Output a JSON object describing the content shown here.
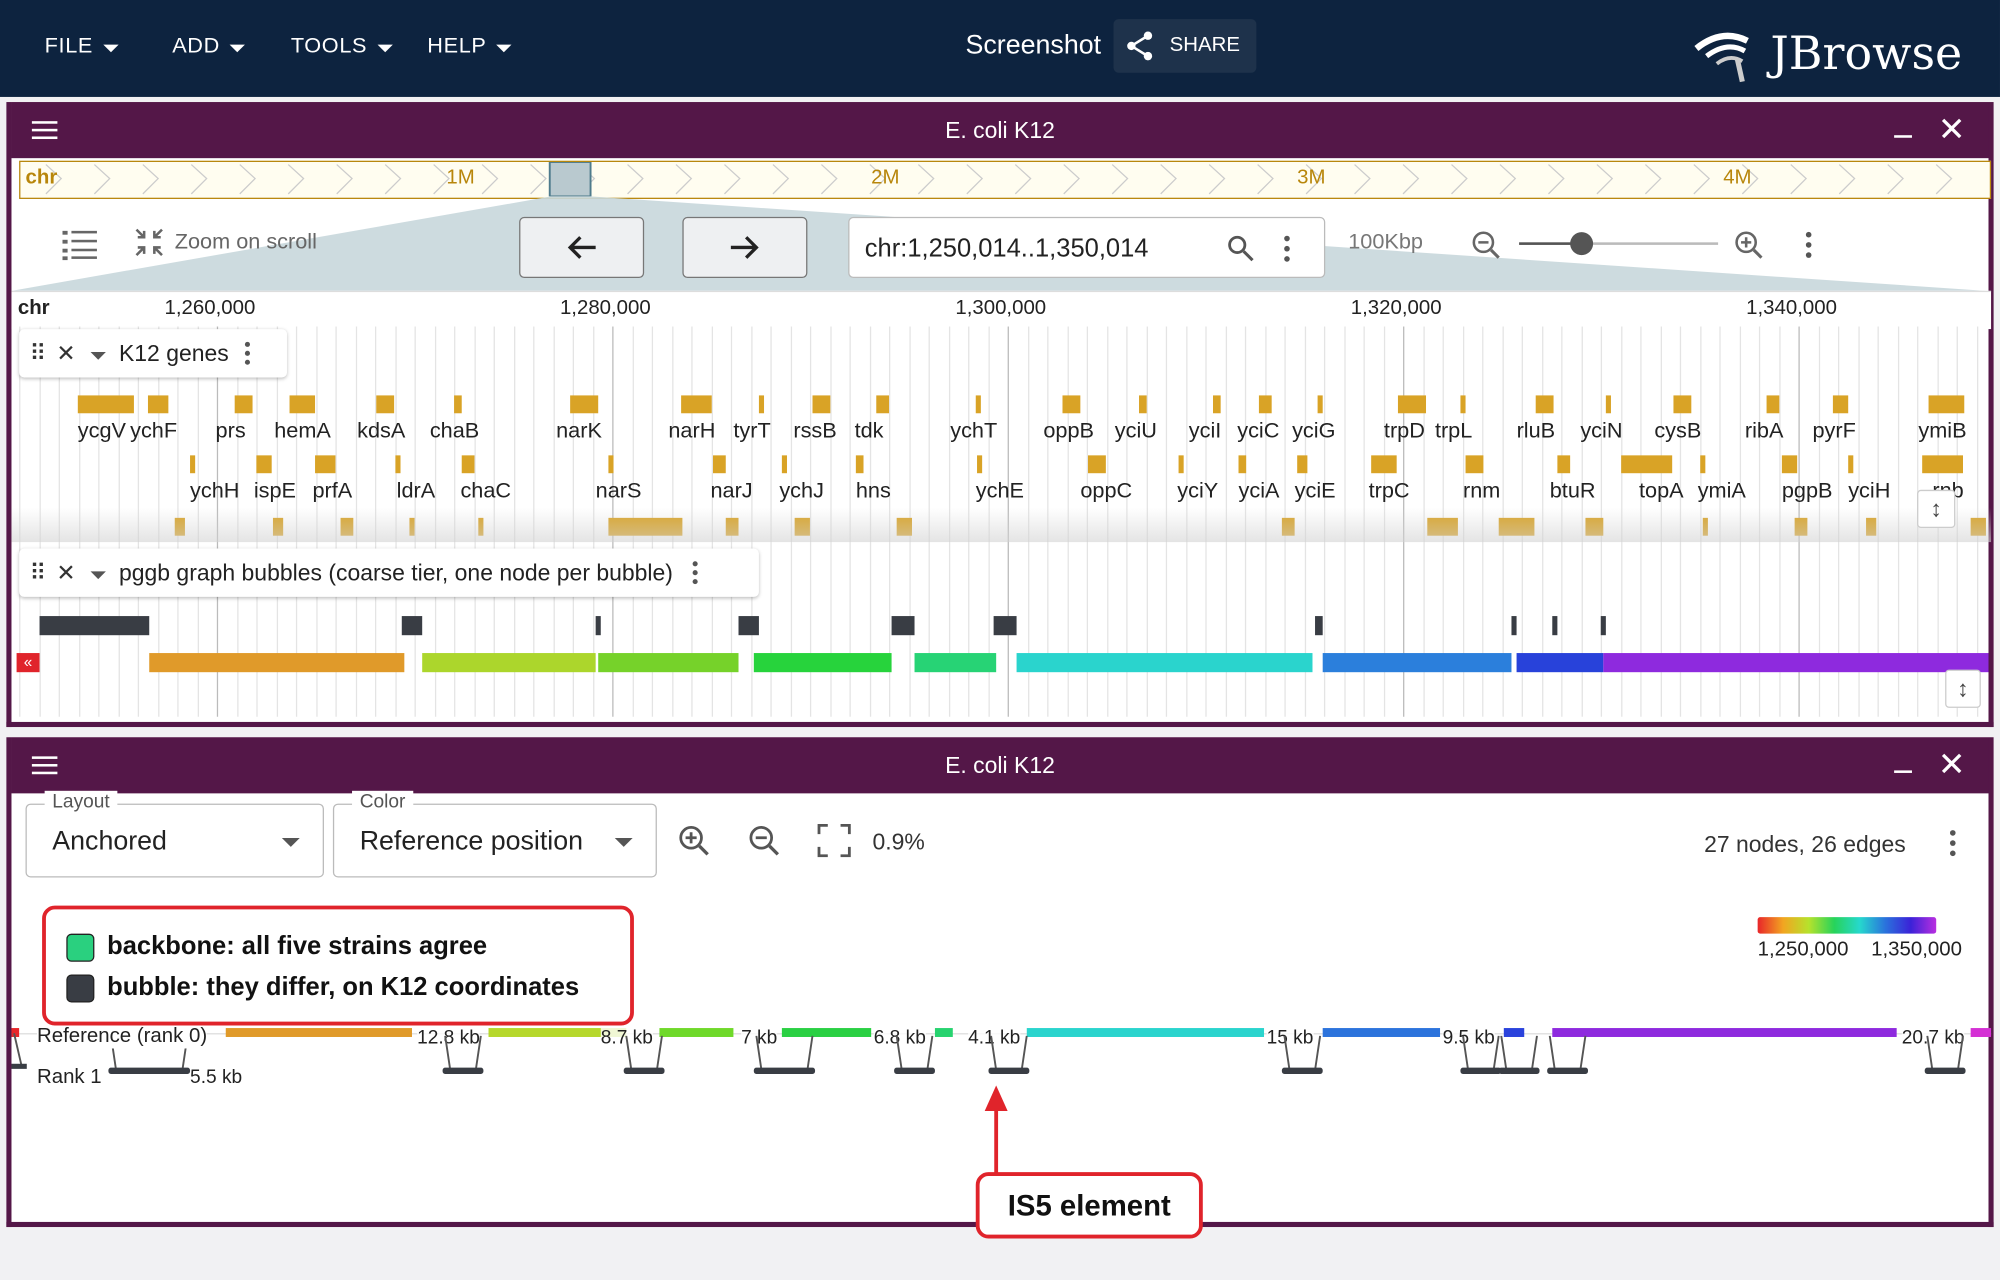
{
  "appbar": {
    "menus": [
      "FILE",
      "ADD",
      "TOOLS",
      "HELP"
    ],
    "screenshot_title": "Screenshot",
    "share_label": "SHARE",
    "logo_text": "JBrowse"
  },
  "linear_view": {
    "title": "E. coli K12",
    "overview": {
      "refname": "chr",
      "labels": [
        "1M",
        "2M",
        "3M",
        "4M"
      ]
    },
    "toolbar": {
      "zoom_on_scroll": "Zoom on scroll",
      "location": "chr:1,250,014..1,350,014",
      "bp_per_view": "100Kbp"
    },
    "ruler": {
      "refname": "chr",
      "ticks": [
        "1,260,000",
        "1,280,000",
        "1,300,000",
        "1,320,000",
        "1,340,000"
      ]
    },
    "tracks": [
      {
        "name": "K12 genes"
      },
      {
        "name": "pggb graph bubbles (coarse tier, one node per bubble)"
      }
    ],
    "genes_row1": [
      "ycgV",
      "ychF",
      "prs",
      "hemA",
      "kdsA",
      "chaB",
      "narK",
      "narH",
      "tyrT",
      "rssB",
      "tdk",
      "ychT",
      "oppB",
      "yciU",
      "yciI",
      "yciC",
      "yciG",
      "trpD",
      "trpL",
      "rluB",
      "yciN",
      "cysB",
      "ribA",
      "pyrF",
      "ymiB"
    ],
    "genes_row2": [
      "ychH",
      "ispE",
      "prfA",
      "ldrA",
      "chaC",
      "narS",
      "narJ",
      "ychJ",
      "hns",
      "ychE",
      "oppC",
      "yciY",
      "yciA",
      "yciE",
      "trpC",
      "rnm",
      "btuR",
      "topA",
      "ymiA",
      "pgpB",
      "yciH",
      "rnb"
    ]
  },
  "graph_view": {
    "title": "E. coli K12",
    "layout": {
      "label": "Layout",
      "value": "Anchored"
    },
    "color": {
      "label": "Color",
      "value": "Reference position"
    },
    "zoom_percent": "0.9%",
    "stats": "27 nodes, 26 edges",
    "gradient": {
      "start": "1,250,000",
      "end": "1,350,000"
    },
    "legend": {
      "backbone": "backbone: all five strains agree",
      "bubble": "bubble: they differ, on K12 coordinates",
      "backbone_color": "#2ad07f",
      "bubble_color": "#393d44"
    },
    "ranks": {
      "reference": "Reference (rank 0)",
      "rank1": "Rank 1"
    },
    "segment_labels": [
      "5.5 kb",
      "12.8 kb",
      "8.7 kb",
      "7 kb",
      "6.8 kb",
      "4.1 kb",
      "15 kb",
      "9.5 kb",
      "20.7 kb"
    ],
    "callout": "IS5 element"
  }
}
